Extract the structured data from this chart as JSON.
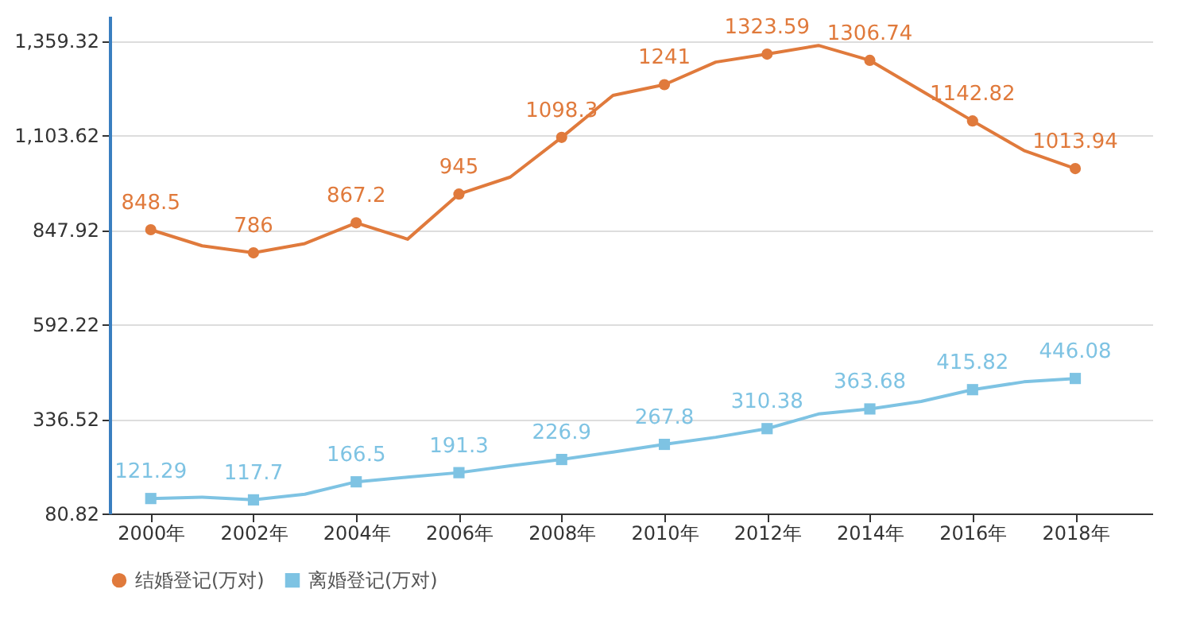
{
  "chart_data": {
    "type": "line",
    "x": [
      2000,
      2001,
      2002,
      2003,
      2004,
      2005,
      2006,
      2007,
      2008,
      2009,
      2010,
      2011,
      2012,
      2013,
      2014,
      2015,
      2016,
      2017,
      2018
    ],
    "series": [
      {
        "name": "结婚登记(万对)",
        "color": "#e07a3c",
        "marker": "circle",
        "values": [
          848.5,
          805,
          786,
          811,
          867.2,
          823,
          945,
          991,
          1098.3,
          1212,
          1241,
          1302,
          1323.59,
          1347,
          1306.74,
          1225,
          1142.82,
          1063,
          1013.94
        ],
        "value_labels": [
          "848.5",
          null,
          "786",
          null,
          "867.2",
          null,
          "945",
          null,
          "1098.3",
          null,
          "1241",
          null,
          "1323.59",
          null,
          "1306.74",
          null,
          "1142.82",
          null,
          "1013.94"
        ]
      },
      {
        "name": "离婚登记(万对)",
        "color": "#7ec3e3",
        "marker": "square",
        "values": [
          121.29,
          125,
          117.7,
          133,
          166.5,
          179,
          191.3,
          210,
          226.9,
          247,
          267.8,
          287,
          310.38,
          350,
          363.68,
          384,
          415.82,
          437,
          446.08
        ],
        "value_labels": [
          "121.29",
          null,
          "117.7",
          null,
          "166.5",
          null,
          "191.3",
          null,
          "226.9",
          null,
          "267.8",
          null,
          "310.38",
          null,
          "363.68",
          null,
          "415.82",
          null,
          "446.08"
        ]
      }
    ],
    "xlim": [
      1999.2,
      2019.5
    ],
    "xticks": [
      {
        "value": 2000,
        "label": "2000年"
      },
      {
        "value": 2002,
        "label": "2002年"
      },
      {
        "value": 2004,
        "label": "2004年"
      },
      {
        "value": 2006,
        "label": "2006年"
      },
      {
        "value": 2008,
        "label": "2008年"
      },
      {
        "value": 2010,
        "label": "2010年"
      },
      {
        "value": 2012,
        "label": "2012年"
      },
      {
        "value": 2014,
        "label": "2014年"
      },
      {
        "value": 2016,
        "label": "2016年"
      },
      {
        "value": 2018,
        "label": "2018年"
      }
    ],
    "ylim": [
      80.82,
      1427
    ],
    "yticks": [
      {
        "value": 80.82,
        "label": "80.82"
      },
      {
        "value": 336.52,
        "label": "336.52"
      },
      {
        "value": 592.22,
        "label": "592.22"
      },
      {
        "value": 847.92,
        "label": "847.92"
      },
      {
        "value": 1103.62,
        "label": "1,103.62"
      },
      {
        "value": 1359.32,
        "label": "1,359.32"
      }
    ],
    "grid": "y",
    "legend": "bottom",
    "line_style": "solid"
  }
}
